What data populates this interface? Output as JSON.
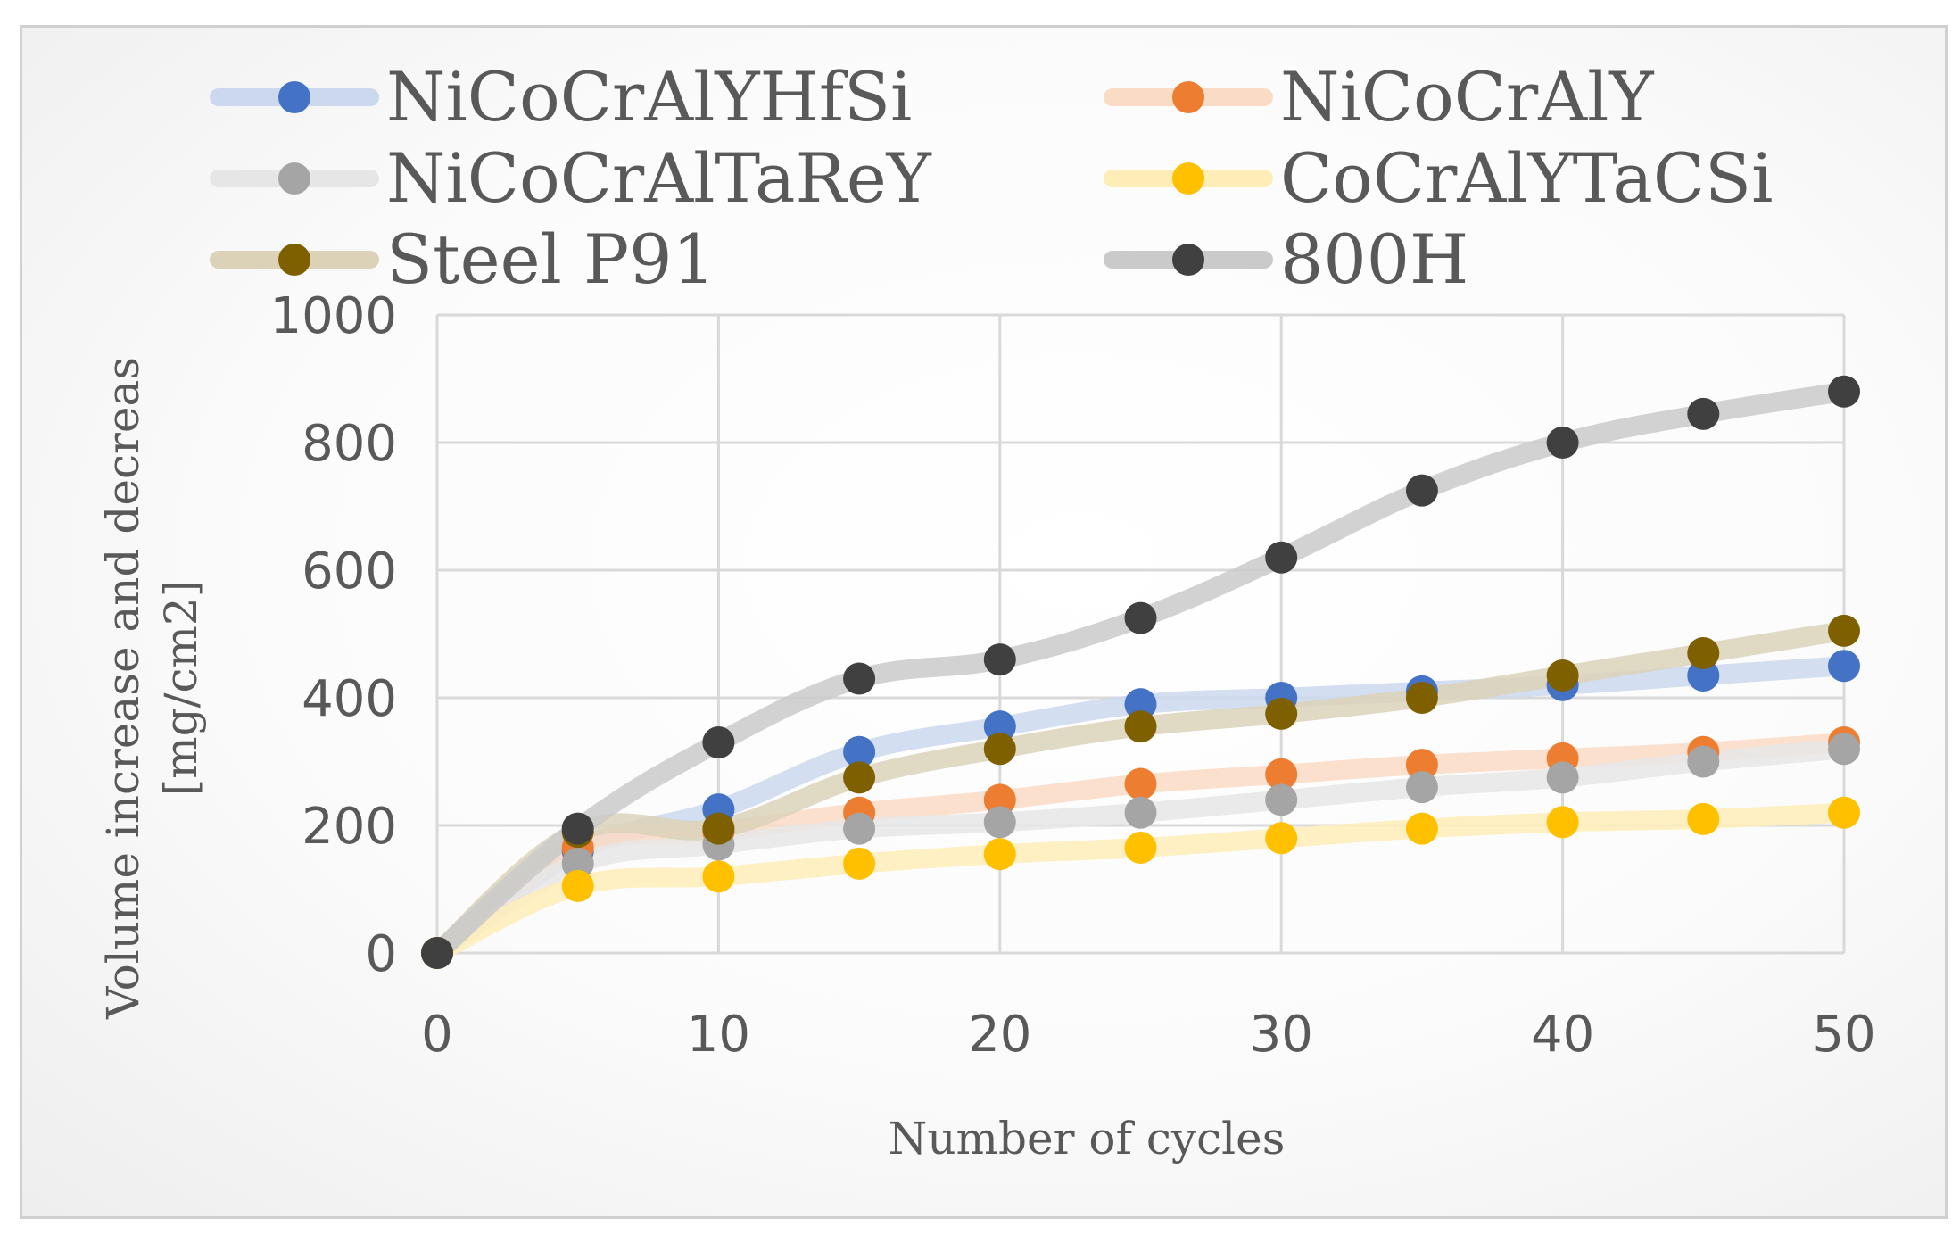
{
  "chart_data": {
    "type": "line",
    "xlabel": "Number of cycles",
    "ylabel_line1": "Volume increase and decreas",
    "ylabel_line2": "[mg/cm2]",
    "xlim": [
      0,
      50
    ],
    "ylim": [
      0,
      1000
    ],
    "x_ticks": [
      "0",
      "10",
      "20",
      "30",
      "40",
      "50"
    ],
    "y_ticks": [
      "0",
      "200",
      "400",
      "600",
      "800",
      "1000"
    ],
    "grid": true,
    "legend_position": "top",
    "x": [
      0,
      5,
      10,
      15,
      20,
      25,
      30,
      35,
      40,
      45,
      50
    ],
    "series": [
      {
        "name": "NiCoCrAlYHfSi",
        "color": "#4472C4",
        "values": [
          0,
          160,
          225,
          315,
          355,
          390,
          400,
          410,
          420,
          435,
          450
        ]
      },
      {
        "name": "NiCoCrAlY",
        "color": "#ED7D31",
        "values": [
          0,
          165,
          190,
          220,
          240,
          265,
          280,
          295,
          305,
          315,
          330
        ]
      },
      {
        "name": "NiCoCrAlTaReY",
        "color": "#A5A5A5",
        "values": [
          0,
          140,
          170,
          195,
          205,
          220,
          240,
          260,
          275,
          300,
          320
        ]
      },
      {
        "name": "CoCrAlYTaCSi",
        "color": "#FFC000",
        "values": [
          0,
          105,
          120,
          140,
          155,
          165,
          180,
          195,
          205,
          210,
          220
        ]
      },
      {
        "name": "Steel P91",
        "color": "#7F6000",
        "values": [
          0,
          190,
          195,
          275,
          320,
          355,
          375,
          400,
          435,
          470,
          505
        ]
      },
      {
        "name": "800H",
        "color": "#404040",
        "values": [
          0,
          195,
          330,
          430,
          460,
          525,
          620,
          725,
          800,
          845,
          880
        ]
      }
    ]
  }
}
